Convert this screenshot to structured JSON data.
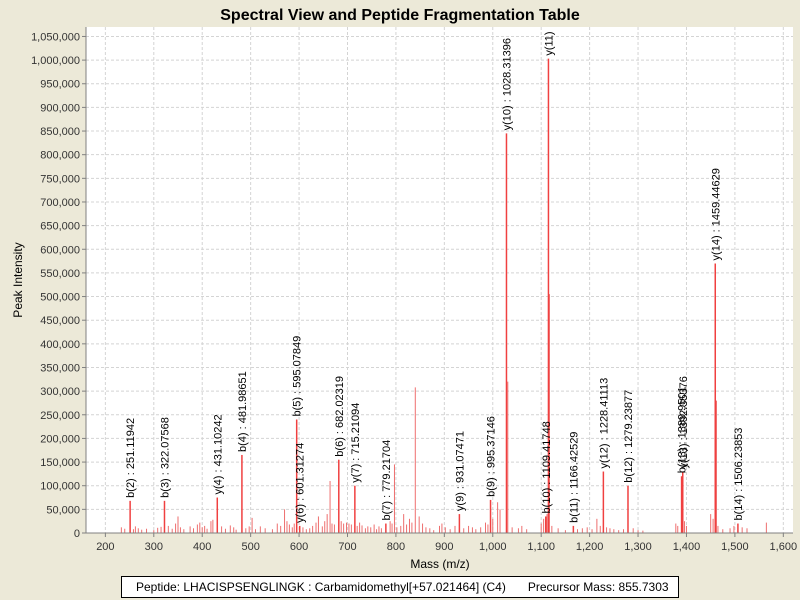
{
  "chart_data": {
    "type": "bar",
    "title": "Spectral View and Peptide Fragmentation Table",
    "xlabel": "Mass (m/z)",
    "ylabel": "Peak Intensity",
    "xlim": [
      160,
      1620
    ],
    "ylim": [
      0,
      1070000
    ],
    "xticks": [
      200,
      300,
      400,
      500,
      600,
      700,
      800,
      900,
      1000,
      1100,
      1200,
      1300,
      1400,
      1500,
      1600
    ],
    "xtick_labels": [
      "200",
      "300",
      "400",
      "500",
      "600",
      "700",
      "800",
      "900",
      "1,000",
      "1,100",
      "1,200",
      "1,300",
      "1,400",
      "1,500",
      "1,600"
    ],
    "yticks": [
      0,
      50000,
      100000,
      150000,
      200000,
      250000,
      300000,
      350000,
      400000,
      450000,
      500000,
      550000,
      600000,
      650000,
      700000,
      750000,
      800000,
      850000,
      900000,
      950000,
      1000000,
      1050000
    ],
    "ytick_labels": [
      "0",
      "50,000",
      "100,000",
      "150,000",
      "200,000",
      "250,000",
      "300,000",
      "350,000",
      "400,000",
      "450,000",
      "500,000",
      "550,000",
      "600,000",
      "650,000",
      "700,000",
      "750,000",
      "800,000",
      "850,000",
      "900,000",
      "950,000",
      "1,000,000",
      "1,050,000"
    ],
    "grid": true,
    "colors": {
      "peak": "#ee6e6e",
      "strong_peak": "#f04040",
      "grid": "#d4d4d4",
      "axis": "#808080",
      "plot_bg": "#ffffff"
    },
    "labeled_peaks": [
      {
        "mz": 251.11942,
        "intensity": 68000,
        "label": "b(2) : 251.11942"
      },
      {
        "mz": 322.07568,
        "intensity": 68000,
        "label": "b(3) : 322.07568"
      },
      {
        "mz": 431.10242,
        "intensity": 75000,
        "label": "y(4) : 431.10242"
      },
      {
        "mz": 481.98651,
        "intensity": 165000,
        "label": "b(4) : 481.98651"
      },
      {
        "mz": 595.07849,
        "intensity": 240000,
        "label": "b(5) : 595.07849"
      },
      {
        "mz": 601.31274,
        "intensity": 15000,
        "label": "y(6) : 601.31274"
      },
      {
        "mz": 682.02319,
        "intensity": 155000,
        "label": "b(6) : 682.02319"
      },
      {
        "mz": 715.21094,
        "intensity": 100000,
        "label": "y(7) : 715.21094"
      },
      {
        "mz": 779.21704,
        "intensity": 20000,
        "label": "b(7) : 779.21704"
      },
      {
        "mz": 931.07471,
        "intensity": 40000,
        "label": "y(9) : 931.07471"
      },
      {
        "mz": 995.37146,
        "intensity": 70000,
        "label": "b(9) : 995.37146"
      },
      {
        "mz": 1028.31396,
        "intensity": 845000,
        "label": "y(10) : 1028.31396"
      },
      {
        "mz": 1109.41748,
        "intensity": 35000,
        "label": "b(10) : 1109.41748"
      },
      {
        "mz": 1115.0,
        "intensity": 1003000,
        "label": "y(11)"
      },
      {
        "mz": 1166.42529,
        "intensity": 15000,
        "label": "b(11) : 1166.42529"
      },
      {
        "mz": 1228.41113,
        "intensity": 130000,
        "label": "y(12) : 1228.41113"
      },
      {
        "mz": 1279.23877,
        "intensity": 100000,
        "label": "b(12) : 1279.23877"
      },
      {
        "mz": 1389.9501,
        "intensity": 120000,
        "label": "b(13) : 1389.9501"
      },
      {
        "mz": 1392.35376,
        "intensity": 130000,
        "label": "y(13) : 1392.35376"
      },
      {
        "mz": 1459.44629,
        "intensity": 570000,
        "label": "y(14) : 1459.44629"
      },
      {
        "mz": 1506.23853,
        "intensity": 20000,
        "label": "b(14) : 1506.23853"
      }
    ],
    "unlabeled_peaks": [
      [
        233,
        12000
      ],
      [
        240,
        9000
      ],
      [
        258,
        8000
      ],
      [
        262,
        14000
      ],
      [
        268,
        10000
      ],
      [
        275,
        7000
      ],
      [
        285,
        9000
      ],
      [
        300,
        6000
      ],
      [
        308,
        11000
      ],
      [
        315,
        13000
      ],
      [
        330,
        15000
      ],
      [
        338,
        9000
      ],
      [
        345,
        20000
      ],
      [
        350,
        35000
      ],
      [
        355,
        12000
      ],
      [
        362,
        8000
      ],
      [
        375,
        14000
      ],
      [
        382,
        10000
      ],
      [
        390,
        18000
      ],
      [
        395,
        22000
      ],
      [
        400,
        12000
      ],
      [
        405,
        15000
      ],
      [
        410,
        9000
      ],
      [
        418,
        25000
      ],
      [
        422,
        28000
      ],
      [
        440,
        14000
      ],
      [
        448,
        9000
      ],
      [
        458,
        16000
      ],
      [
        465,
        12000
      ],
      [
        470,
        7000
      ],
      [
        490,
        10000
      ],
      [
        497,
        14000
      ],
      [
        503,
        32000
      ],
      [
        510,
        8000
      ],
      [
        520,
        14000
      ],
      [
        530,
        10000
      ],
      [
        545,
        8000
      ],
      [
        555,
        20000
      ],
      [
        562,
        15000
      ],
      [
        570,
        50000
      ],
      [
        575,
        25000
      ],
      [
        580,
        18000
      ],
      [
        586,
        12000
      ],
      [
        590,
        20000
      ],
      [
        608,
        12000
      ],
      [
        615,
        8000
      ],
      [
        622,
        10000
      ],
      [
        628,
        15000
      ],
      [
        635,
        22000
      ],
      [
        640,
        35000
      ],
      [
        648,
        14000
      ],
      [
        653,
        25000
      ],
      [
        658,
        40000
      ],
      [
        664,
        110000
      ],
      [
        668,
        20000
      ],
      [
        673,
        18000
      ],
      [
        687,
        25000
      ],
      [
        692,
        20000
      ],
      [
        698,
        22000
      ],
      [
        703,
        20000
      ],
      [
        708,
        18000
      ],
      [
        720,
        15000
      ],
      [
        725,
        22000
      ],
      [
        730,
        16000
      ],
      [
        737,
        10000
      ],
      [
        742,
        14000
      ],
      [
        748,
        12000
      ],
      [
        755,
        18000
      ],
      [
        760,
        8000
      ],
      [
        765,
        14000
      ],
      [
        770,
        10000
      ],
      [
        788,
        25000
      ],
      [
        792,
        20000
      ],
      [
        797,
        145000
      ],
      [
        802,
        12000
      ],
      [
        810,
        15000
      ],
      [
        816,
        40000
      ],
      [
        822,
        18000
      ],
      [
        828,
        30000
      ],
      [
        833,
        22000
      ],
      [
        840,
        308000
      ],
      [
        848,
        35000
      ],
      [
        855,
        20000
      ],
      [
        862,
        12000
      ],
      [
        870,
        10000
      ],
      [
        878,
        6000
      ],
      [
        890,
        15000
      ],
      [
        895,
        20000
      ],
      [
        902,
        12000
      ],
      [
        912,
        8000
      ],
      [
        922,
        15000
      ],
      [
        940,
        10000
      ],
      [
        950,
        15000
      ],
      [
        958,
        12000
      ],
      [
        965,
        8000
      ],
      [
        975,
        12000
      ],
      [
        985,
        22000
      ],
      [
        990,
        18000
      ],
      [
        1000,
        30000
      ],
      [
        1010,
        65000
      ],
      [
        1015,
        50000
      ],
      [
        1031,
        320000
      ],
      [
        1040,
        12000
      ],
      [
        1053,
        10000
      ],
      [
        1060,
        15000
      ],
      [
        1070,
        8000
      ],
      [
        1100,
        20000
      ],
      [
        1105,
        30000
      ],
      [
        1112,
        40000
      ],
      [
        1117,
        505000
      ],
      [
        1122,
        15000
      ],
      [
        1135,
        10000
      ],
      [
        1150,
        6000
      ],
      [
        1175,
        8000
      ],
      [
        1185,
        10000
      ],
      [
        1195,
        12000
      ],
      [
        1205,
        8000
      ],
      [
        1215,
        30000
      ],
      [
        1222,
        15000
      ],
      [
        1235,
        12000
      ],
      [
        1242,
        10000
      ],
      [
        1250,
        8000
      ],
      [
        1260,
        6000
      ],
      [
        1270,
        8000
      ],
      [
        1290,
        10000
      ],
      [
        1300,
        6000
      ],
      [
        1310,
        5000
      ],
      [
        1378,
        20000
      ],
      [
        1382,
        15000
      ],
      [
        1396,
        25000
      ],
      [
        1400,
        15000
      ],
      [
        1450,
        40000
      ],
      [
        1455,
        30000
      ],
      [
        1462,
        280000
      ],
      [
        1465,
        15000
      ],
      [
        1475,
        8000
      ],
      [
        1490,
        10000
      ],
      [
        1498,
        15000
      ],
      [
        1515,
        12000
      ],
      [
        1525,
        10000
      ],
      [
        1565,
        22000
      ]
    ]
  },
  "footer": {
    "peptide": "Peptide: LHACISPSENGLINGK : Carbamidomethyl[+57.021464] (C4)",
    "precursor": "Precursor Mass: 855.7303"
  }
}
